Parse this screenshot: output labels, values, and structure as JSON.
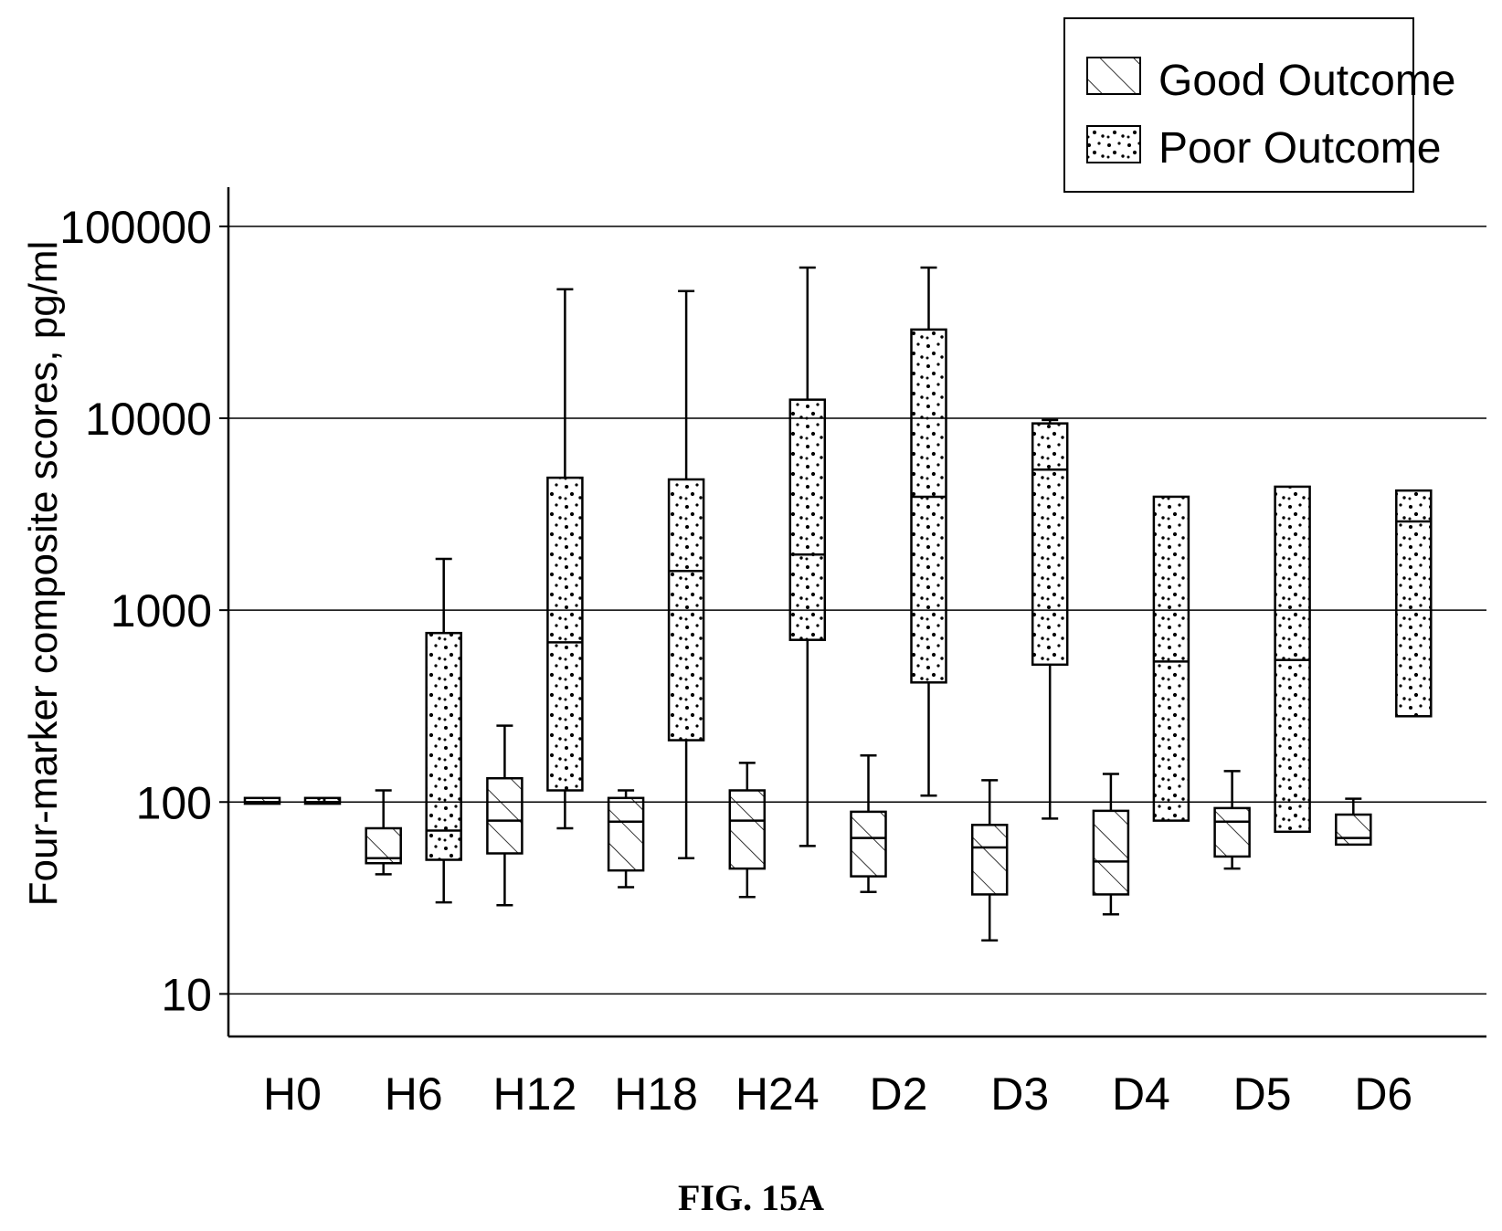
{
  "chart_data": {
    "type": "box",
    "title": "",
    "xlabel": "",
    "ylabel": "Four-marker composite scores, pg/ml",
    "yscale": "log",
    "ylim": [
      6,
      160000
    ],
    "yticks": [
      10,
      100,
      1000,
      10000,
      100000
    ],
    "ytick_labels": [
      "10",
      "100",
      "1000",
      "10000",
      "100000"
    ],
    "grid": "horizontal",
    "legend_position": "top-right",
    "categories": [
      "H0",
      "H6",
      "H12",
      "H18",
      "H24",
      "D2",
      "D3",
      "D4",
      "D5",
      "D6"
    ],
    "series": [
      {
        "name": "Good Outcome",
        "pattern": "hatch",
        "boxes": [
          {
            "whisker_low": 98,
            "q1": 98,
            "median": 100,
            "q3": 105,
            "whisker_high": 105
          },
          {
            "whisker_low": 42,
            "q1": 48,
            "median": 51,
            "q3": 73,
            "whisker_high": 115
          },
          {
            "whisker_low": 29,
            "q1": 54,
            "median": 80,
            "q3": 133,
            "whisker_high": 250
          },
          {
            "whisker_low": 36,
            "q1": 44,
            "median": 79,
            "q3": 105,
            "whisker_high": 115
          },
          {
            "whisker_low": 32,
            "q1": 45,
            "median": 80,
            "q3": 115,
            "whisker_high": 160
          },
          {
            "whisker_low": 34,
            "q1": 41,
            "median": 65,
            "q3": 89,
            "whisker_high": 175
          },
          {
            "whisker_low": 19,
            "q1": 33,
            "median": 58,
            "q3": 76,
            "whisker_high": 130
          },
          {
            "whisker_low": 26,
            "q1": 33,
            "median": 49,
            "q3": 90,
            "whisker_high": 140
          },
          {
            "whisker_low": 45,
            "q1": 52,
            "median": 79,
            "q3": 93,
            "whisker_high": 145
          },
          {
            "whisker_low": 60,
            "q1": 60,
            "median": 65,
            "q3": 86,
            "whisker_high": 104
          }
        ]
      },
      {
        "name": "Poor Outcome",
        "pattern": "dots",
        "boxes": [
          {
            "whisker_low": 98,
            "q1": 98,
            "median": 100,
            "q3": 105,
            "whisker_high": 105
          },
          {
            "whisker_low": 30,
            "q1": 50,
            "median": 71,
            "q3": 760,
            "whisker_high": 1850
          },
          {
            "whisker_low": 73,
            "q1": 115,
            "median": 680,
            "q3": 4900,
            "whisker_high": 47000
          },
          {
            "whisker_low": 51,
            "q1": 210,
            "median": 1600,
            "q3": 4800,
            "whisker_high": 46000
          },
          {
            "whisker_low": 59,
            "q1": 700,
            "median": 1950,
            "q3": 12500,
            "whisker_high": 61000
          },
          {
            "whisker_low": 108,
            "q1": 420,
            "median": 3900,
            "q3": 29000,
            "whisker_high": 61000
          },
          {
            "whisker_low": 82,
            "q1": 520,
            "median": 5400,
            "q3": 9400,
            "whisker_high": 9800
          },
          {
            "whisker_low": 80,
            "q1": 80,
            "median": 540,
            "q3": 3900,
            "whisker_high": 3900
          },
          {
            "whisker_low": 70,
            "q1": 70,
            "median": 550,
            "q3": 4400,
            "whisker_high": 4400
          },
          {
            "whisker_low": 280,
            "q1": 280,
            "median": 2900,
            "q3": 4200,
            "whisker_high": 4200
          }
        ]
      }
    ]
  },
  "figure_label": "FIG. 15A"
}
